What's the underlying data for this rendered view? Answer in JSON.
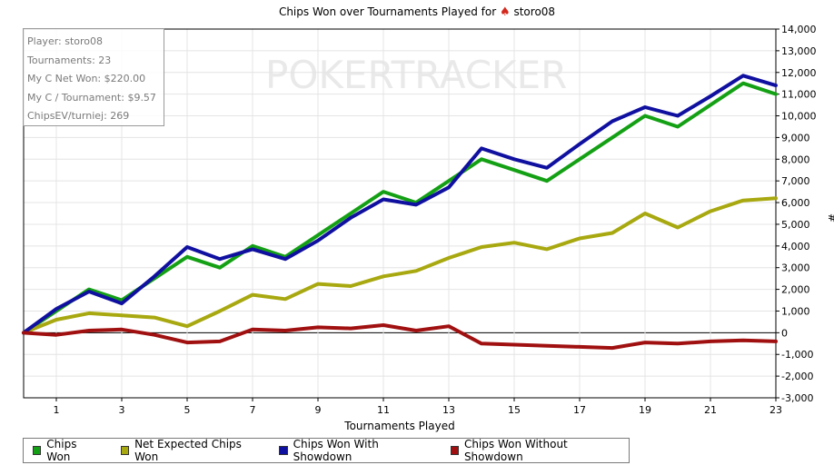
{
  "title": {
    "prefix": "Chips Won over Tournaments Played for",
    "spade_icon": "spade-icon",
    "player": "storo08"
  },
  "watermark": "POKERTRACKER",
  "stats": [
    "Player: storo08",
    "Tournaments: 23",
    "My C Net Won: $220.00",
    "My C / Tournament: $9.57",
    "ChipsEV/turniej: 269"
  ],
  "chart_data": {
    "type": "line",
    "xlabel": "Tournaments Played",
    "ylabel": "#",
    "xlim": [
      0,
      23
    ],
    "ylim": [
      -3000,
      14000
    ],
    "x_ticks": [
      1,
      3,
      5,
      7,
      9,
      11,
      13,
      15,
      17,
      19,
      21,
      23
    ],
    "y_ticks": [
      -3000,
      -2000,
      -1000,
      0,
      1000,
      2000,
      3000,
      4000,
      5000,
      6000,
      7000,
      8000,
      9000,
      10000,
      11000,
      12000,
      13000,
      14000
    ],
    "y_tick_labels": [
      "-3,000",
      "-2,000",
      "-1,000",
      "0",
      "1,000",
      "2,000",
      "3,000",
      "4,000",
      "5,000",
      "6,000",
      "7,000",
      "8,000",
      "9,000",
      "10,000",
      "11,000",
      "12,000",
      "13,000",
      "14,000"
    ],
    "legend_position": "bottom",
    "grid": true,
    "x": [
      0,
      1,
      2,
      3,
      4,
      5,
      6,
      7,
      8,
      9,
      10,
      11,
      12,
      13,
      14,
      15,
      16,
      17,
      18,
      19,
      20,
      21,
      22,
      23
    ],
    "series": [
      {
        "name": "Chips Won",
        "color": "#14a014",
        "values": [
          0,
          1000,
          2000,
          1500,
          2500,
          3500,
          3000,
          4000,
          3500,
          4500,
          5500,
          6500,
          6000,
          7000,
          8000,
          7500,
          7000,
          8000,
          9000,
          10000,
          9500,
          10500,
          11500,
          11000
        ]
      },
      {
        "name": "Net Expected Chips Won",
        "color": "#a8a810",
        "values": [
          0,
          600,
          900,
          800,
          700,
          300,
          1000,
          1750,
          1550,
          2250,
          2150,
          2600,
          2850,
          3450,
          3950,
          4150,
          3850,
          4350,
          4600,
          5500,
          4850,
          5600,
          6100,
          6200
        ]
      },
      {
        "name": "Chips Won With Showdown",
        "color": "#1010a0",
        "values": [
          0,
          1100,
          1900,
          1350,
          2600,
          3950,
          3400,
          3850,
          3400,
          4250,
          5300,
          6150,
          5900,
          6700,
          8500,
          8000,
          7600,
          8700,
          9750,
          10400,
          10000,
          10900,
          11850,
          11400
        ]
      },
      {
        "name": "Chips Won Without Showdown",
        "color": "#a01010",
        "values": [
          0,
          -100,
          100,
          150,
          -100,
          -450,
          -400,
          150,
          100,
          250,
          200,
          350,
          100,
          300,
          -500,
          -550,
          -600,
          -650,
          -700,
          -450,
          -500,
          -400,
          -350,
          -400
        ]
      }
    ]
  }
}
